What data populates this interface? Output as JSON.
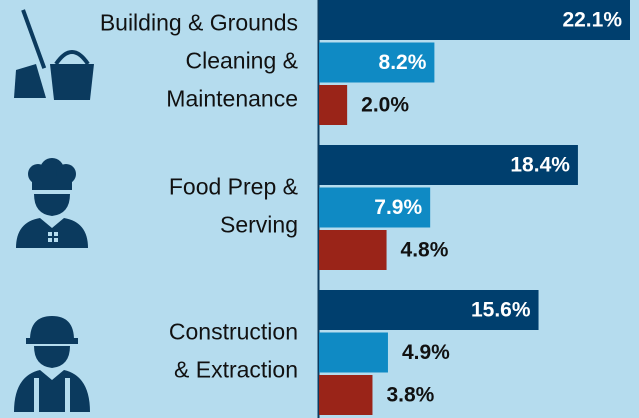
{
  "chart_data": {
    "type": "bar",
    "orientation": "horizontal",
    "categories": [
      [
        "Building & Grounds",
        "Cleaning &",
        "Maintenance"
      ],
      [
        "Food Prep &",
        "Serving"
      ],
      [
        "Construction",
        "& Extraction"
      ]
    ],
    "series": [
      {
        "color": "#003f6e",
        "values": [
          22.1,
          18.4,
          15.6
        ],
        "value_labels": [
          "22.1%",
          "18.4%",
          "15.6%"
        ]
      },
      {
        "color": "#0f8ac4",
        "values": [
          8.2,
          7.9,
          4.9
        ],
        "value_labels": [
          "8.2%",
          "7.9%",
          "4.9%"
        ]
      },
      {
        "color": "#9a2418",
        "values": [
          2.0,
          4.8,
          3.8
        ],
        "value_labels": [
          "2.0%",
          "4.8%",
          "3.8%"
        ]
      }
    ]
  }
}
